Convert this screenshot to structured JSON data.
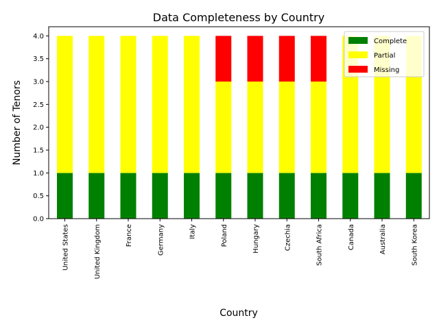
{
  "chart_data": {
    "type": "bar",
    "stacked": true,
    "title": "Data Completeness by Country",
    "xlabel": "Country",
    "ylabel": "Number of Tenors",
    "categories": [
      "United States",
      "United Kingdom",
      "France",
      "Germany",
      "Italy",
      "Poland",
      "Hungary",
      "Czechia",
      "South Africa",
      "Canada",
      "Australia",
      "South Korea"
    ],
    "series": [
      {
        "name": "Complete",
        "color": "#008000",
        "values": [
          1,
          1,
          1,
          1,
          1,
          1,
          1,
          1,
          1,
          1,
          1,
          1
        ]
      },
      {
        "name": "Partial",
        "color": "#ffff00",
        "values": [
          3,
          3,
          3,
          3,
          3,
          2,
          2,
          2,
          2,
          3,
          3,
          3
        ]
      },
      {
        "name": "Missing",
        "color": "#ff0000",
        "values": [
          0,
          0,
          0,
          0,
          0,
          1,
          1,
          1,
          1,
          0,
          0,
          0
        ]
      }
    ],
    "ylim": [
      0,
      4.2
    ],
    "yticks": [
      "0.0",
      "0.5",
      "1.0",
      "1.5",
      "2.0",
      "2.5",
      "3.0",
      "3.5",
      "4.0"
    ],
    "grid": false,
    "legend_position": "top-right"
  }
}
